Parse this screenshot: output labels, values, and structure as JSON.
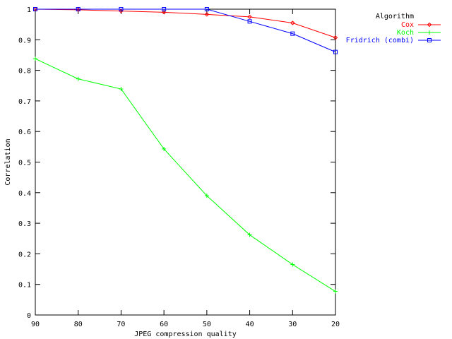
{
  "chart_data": {
    "type": "line",
    "title": "",
    "xlabel": "JPEG compression quality",
    "ylabel": "Correlation",
    "x": [
      90,
      80,
      70,
      60,
      50,
      40,
      30,
      20
    ],
    "xlim": [
      90,
      20
    ],
    "ylim": [
      0,
      1
    ],
    "x_ticks": [
      "90",
      "80",
      "70",
      "60",
      "50",
      "40",
      "30",
      "20"
    ],
    "y_ticks": [
      "0",
      "0.1",
      "0.2",
      "0.3",
      "0.4",
      "0.5",
      "0.6",
      "0.7",
      "0.8",
      "0.9",
      "1"
    ],
    "grid": false,
    "legend_title": "Algorithm",
    "legend_position": "top-right, outside plot",
    "series": [
      {
        "name": "Cox",
        "color": "#ff0000",
        "marker": "diamond",
        "values": [
          1.0,
          0.998,
          0.994,
          0.99,
          0.983,
          0.975,
          0.955,
          0.907
        ]
      },
      {
        "name": "Koch",
        "color": "#00ff00",
        "marker": "plus",
        "values": [
          0.838,
          0.772,
          0.739,
          0.543,
          0.39,
          0.262,
          0.165,
          0.077
        ]
      },
      {
        "name": "Fridrich (combi)",
        "color": "#0000ff",
        "marker": "square",
        "values": [
          1.0,
          1.0,
          1.0,
          1.0,
          1.0,
          0.96,
          0.92,
          0.86
        ]
      }
    ]
  }
}
